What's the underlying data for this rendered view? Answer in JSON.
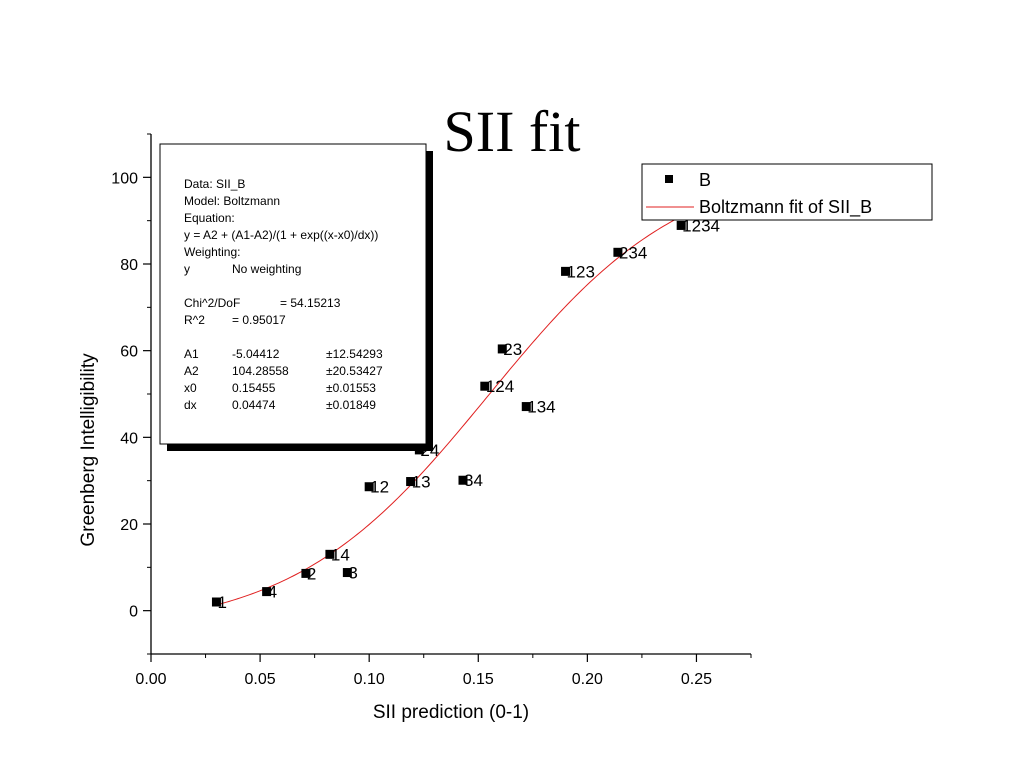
{
  "page": {
    "title": "SII fit"
  },
  "chart_data": {
    "type": "scatter",
    "title": "SII fit",
    "xlabel": "SII prediction (0-1)",
    "ylabel": "Greenberg Intelligibility",
    "xlim": [
      0.0,
      0.275
    ],
    "ylim": [
      -10,
      110
    ],
    "xticks": [
      0.0,
      0.05,
      0.1,
      0.15,
      0.2,
      0.25
    ],
    "xtick_labels": [
      "0.00",
      "0.05",
      "0.10",
      "0.15",
      "0.20",
      "0.25"
    ],
    "yticks": [
      0,
      20,
      40,
      60,
      80,
      100
    ],
    "ytick_labels": [
      "0",
      "20",
      "40",
      "60",
      "80",
      "100"
    ],
    "grid": false,
    "legend_position": "top-right",
    "series": [
      {
        "name": "B",
        "type": "scatter",
        "color": "#000000",
        "points": [
          {
            "x": 0.03,
            "y": 2.0,
            "label": "1"
          },
          {
            "x": 0.053,
            "y": 4.4,
            "label": "4"
          },
          {
            "x": 0.071,
            "y": 8.6,
            "label": "2"
          },
          {
            "x": 0.082,
            "y": 13.0,
            "label": "14"
          },
          {
            "x": 0.09,
            "y": 8.8,
            "label": "3"
          },
          {
            "x": 0.1,
            "y": 28.6,
            "label": "12"
          },
          {
            "x": 0.119,
            "y": 29.8,
            "label": "13"
          },
          {
            "x": 0.123,
            "y": 37.1,
            "label": "24"
          },
          {
            "x": 0.143,
            "y": 30.1,
            "label": "34"
          },
          {
            "x": 0.153,
            "y": 51.8,
            "label": "124"
          },
          {
            "x": 0.161,
            "y": 60.4,
            "label": "23"
          },
          {
            "x": 0.172,
            "y": 47.1,
            "label": "134"
          },
          {
            "x": 0.19,
            "y": 78.3,
            "label": "123"
          },
          {
            "x": 0.214,
            "y": 82.7,
            "label": "234"
          },
          {
            "x": 0.243,
            "y": 88.9,
            "label": "1234"
          }
        ]
      },
      {
        "name": "Boltzmann fit of SII_B",
        "type": "line",
        "color": "#e02020",
        "model": "boltzmann",
        "params": {
          "A1": -5.04412,
          "A2": 104.28558,
          "x0": 0.15455,
          "dx": 0.04474
        },
        "x_range": [
          0.029,
          0.243
        ]
      }
    ],
    "stats_box": {
      "lines": [
        "Data: SII_B",
        "Model: Boltzmann",
        "Equation:",
        "y = A2 + (A1-A2)/(1 + exp((x-x0)/dx))",
        "Weighting:",
        [
          "y",
          "No weighting"
        ],
        "",
        [
          "Chi^2/DoF",
          "= 54.15213"
        ],
        [
          "R^2",
          "=  0.95017"
        ],
        "",
        [
          "A1",
          "-5.04412",
          "±12.54293"
        ],
        [
          "A2",
          "104.28558",
          "±20.53427"
        ],
        [
          "x0",
          "0.15455",
          "±0.01553"
        ],
        [
          "dx",
          "0.04474",
          "±0.01849"
        ]
      ]
    }
  }
}
